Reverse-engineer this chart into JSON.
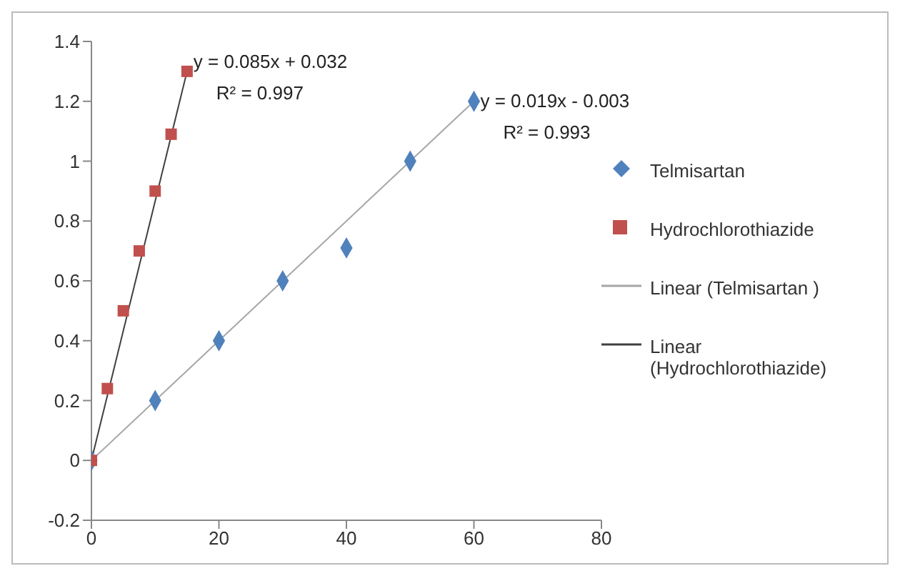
{
  "chart_data": {
    "type": "scatter",
    "series": [
      {
        "name": "Telmisartan",
        "marker": "diamond",
        "color": "#4f81bd",
        "x": [
          0,
          10,
          20,
          30,
          40,
          50,
          60
        ],
        "values": [
          0,
          0.2,
          0.4,
          0.6,
          0.71,
          1.0,
          1.2
        ]
      },
      {
        "name": "Hydrochlorothiazide",
        "marker": "square",
        "color": "#c0504d",
        "x": [
          0,
          2.5,
          5,
          7.5,
          10,
          12.5,
          15
        ],
        "values": [
          0,
          0.24,
          0.5,
          0.7,
          0.9,
          1.09,
          1.3
        ]
      },
      {
        "name": "Linear (Telmisartan )",
        "type": "line",
        "marker": "none",
        "color": "#a6a6a6",
        "x": [
          0,
          60
        ],
        "values": [
          0,
          1.2
        ]
      },
      {
        "name": "Linear (Hydrochlorothiazide)",
        "type": "line",
        "marker": "none",
        "color": "#404040",
        "x": [
          0,
          15
        ],
        "values": [
          0,
          1.3
        ]
      }
    ],
    "annotations": [
      {
        "text": "y = 0.085x + 0.032",
        "x": 16,
        "y": 1.33
      },
      "R² = 0.997",
      {
        "text": "y = 0.019x - 0.003",
        "x": 61,
        "y": 1.2
      },
      "R² = 0.993"
    ],
    "xlim": [
      0,
      80
    ],
    "xticks": [
      0,
      20,
      40,
      60,
      80
    ],
    "ylim": [
      -0.2,
      1.4
    ],
    "yticks": [
      -0.2,
      0,
      0.2,
      0.4,
      0.6,
      0.8,
      1,
      1.2,
      1.4
    ],
    "grid": false,
    "legend": "right"
  }
}
